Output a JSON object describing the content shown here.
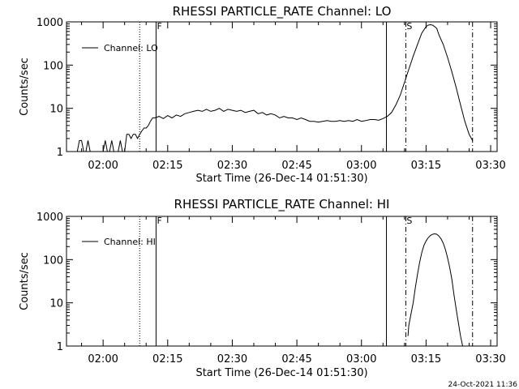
{
  "footer": {
    "timestamp": "24-Oct-2021 11:36"
  },
  "colors": {
    "background": "#ffffff",
    "foreground": "#000000"
  },
  "time_axis": {
    "start_minutes": 111.5,
    "range_minutes": [
      111.5,
      211.5
    ],
    "ticks": [
      {
        "t": 120,
        "label": "02:00"
      },
      {
        "t": 135,
        "label": "02:15"
      },
      {
        "t": 150,
        "label": "02:30"
      },
      {
        "t": 165,
        "label": "02:45"
      },
      {
        "t": 180,
        "label": "03:00"
      },
      {
        "t": 195,
        "label": "03:15"
      },
      {
        "t": 210,
        "label": "03:30"
      }
    ]
  },
  "markers": [
    {
      "t": 128.5,
      "style": "dotted",
      "label": ""
    },
    {
      "t": 132.3,
      "style": "solid",
      "label": "F"
    },
    {
      "t": 185.8,
      "style": "solid",
      "label": ""
    },
    {
      "t": 190.3,
      "style": "dashdot",
      "label": "S"
    },
    {
      "t": 205.8,
      "style": "dashdot",
      "label": ""
    }
  ],
  "chart_data": [
    {
      "type": "line",
      "title": "RHESSI PARTICLE_RATE Channel: LO",
      "xlabel": "Start Time (26-Dec-14 01:51:30)",
      "ylabel": "Counts/sec",
      "yscale": "log",
      "ylim": [
        1,
        1000
      ],
      "ytick_labels": [
        "1",
        "10",
        "100",
        "1000"
      ],
      "legend": {
        "position": "top-left",
        "entries": [
          "Channel: LO"
        ]
      },
      "series": [
        {
          "name": "Channel: LO",
          "x": [
            111.5,
            113.5,
            114.0,
            114.5,
            115.0,
            115.5,
            116.0,
            116.5,
            117.0,
            117.5,
            118.0,
            118.5,
            119.0,
            119.5,
            120.0,
            120.5,
            121.0,
            121.5,
            122.0,
            122.5,
            123.0,
            123.5,
            124.0,
            124.5,
            125.0,
            125.5,
            126.0,
            126.5,
            127.0,
            127.5,
            128.0,
            128.5,
            129.0,
            129.5,
            130.0,
            130.5,
            131.0,
            131.5,
            132.0,
            133.0,
            134.0,
            135.0,
            136.0,
            137.0,
            138.0,
            139.0,
            140.0,
            141.0,
            142.0,
            143.0,
            144.0,
            145.0,
            146.0,
            147.0,
            148.0,
            149.0,
            150.0,
            151.0,
            152.0,
            153.0,
            154.0,
            155.0,
            156.0,
            157.0,
            158.0,
            159.0,
            160.0,
            161.0,
            162.0,
            163.0,
            164.0,
            165.0,
            166.0,
            167.0,
            168.0,
            169.0,
            170.0,
            171.0,
            172.0,
            173.0,
            174.0,
            175.0,
            176.0,
            177.0,
            178.0,
            179.0,
            180.0,
            181.0,
            182.0,
            183.0,
            184.0,
            185.0,
            186.0,
            187.0,
            188.0,
            189.0,
            190.0,
            191.0,
            192.0,
            193.0,
            194.0,
            195.0,
            195.5,
            196.0,
            196.5,
            197.0,
            197.5,
            198.0,
            199.0,
            200.0,
            201.0,
            202.0,
            203.0,
            204.0,
            205.0,
            205.8
          ],
          "y": [
            1,
            1,
            1,
            1.8,
            1.8,
            1,
            1,
            1.8,
            1,
            1,
            1,
            1,
            1,
            1,
            1,
            1.8,
            1,
            1,
            1.8,
            1,
            1,
            1,
            1.8,
            1,
            1,
            2.5,
            2.5,
            2,
            2.5,
            2.5,
            2,
            2.5,
            3,
            3.5,
            3.5,
            4,
            5,
            6,
            6,
            6.5,
            5.8,
            6.8,
            6,
            7,
            6.5,
            7.5,
            8,
            8.5,
            9,
            8.5,
            9.5,
            8.5,
            9,
            10,
            8.5,
            9.5,
            9,
            8.5,
            9,
            8,
            8.5,
            9,
            7.5,
            8,
            7,
            7.5,
            7,
            6,
            6.5,
            6,
            6,
            5.5,
            6,
            5.5,
            5,
            5,
            4.8,
            5,
            5.2,
            5,
            5,
            5.2,
            5,
            5.2,
            5,
            5.5,
            5,
            5.2,
            5.5,
            5.5,
            5.3,
            5.8,
            6.5,
            8,
            12,
            20,
            40,
            80,
            160,
            300,
            550,
            780,
            840,
            860,
            840,
            780,
            700,
            500,
            300,
            150,
            70,
            30,
            12,
            5,
            2.5,
            1.8
          ]
        }
      ]
    },
    {
      "type": "line",
      "title": "RHESSI PARTICLE_RATE Channel: HI",
      "xlabel": "Start Time (26-Dec-14 01:51:30)",
      "ylabel": "Counts/sec",
      "yscale": "log",
      "ylim": [
        1,
        1000
      ],
      "ytick_labels": [
        "1",
        "10",
        "100",
        "1000"
      ],
      "legend": {
        "position": "top-left",
        "entries": [
          "Channel: HI"
        ]
      },
      "series": [
        {
          "name": "Channel: HI",
          "x": [
            190.8,
            191.0,
            191.5,
            192.0,
            192.5,
            193.0,
            193.5,
            194.0,
            194.5,
            195.0,
            195.5,
            196.0,
            196.5,
            197.0,
            197.5,
            198.0,
            198.5,
            199.0,
            199.5,
            200.0,
            200.5,
            201.0,
            201.5,
            202.0,
            202.5,
            203.0,
            203.5
          ],
          "y": [
            1.7,
            3,
            5.5,
            10,
            22,
            45,
            85,
            145,
            210,
            270,
            320,
            360,
            385,
            395,
            385,
            350,
            300,
            240,
            170,
            110,
            65,
            35,
            15,
            7,
            3.5,
            1.7,
            1
          ]
        }
      ]
    }
  ]
}
